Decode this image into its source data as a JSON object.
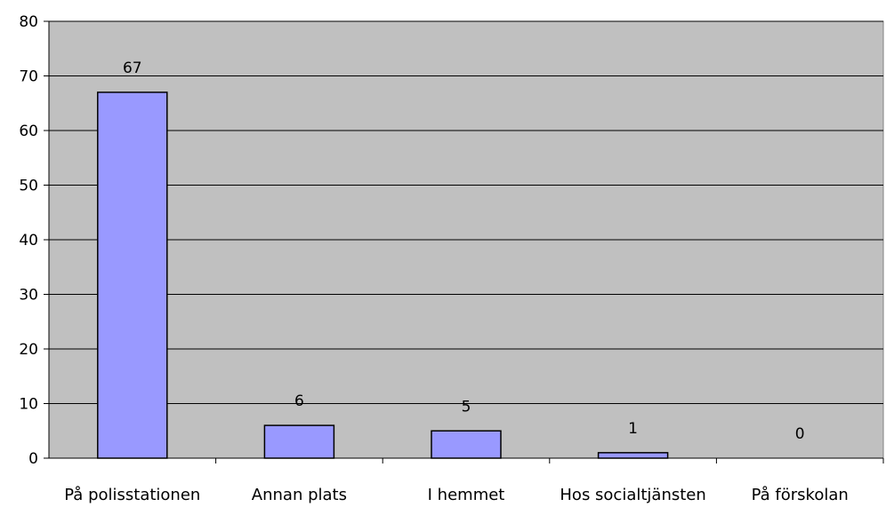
{
  "chart_data": {
    "type": "bar",
    "categories": [
      "På polisstationen",
      "Annan plats",
      "I hemmet",
      "Hos socialtjänsten",
      "På förskolan"
    ],
    "values": [
      67,
      6,
      5,
      1,
      0
    ],
    "data_labels": [
      "67",
      "6",
      "5",
      "1",
      "0"
    ],
    "ylim": [
      0,
      80
    ],
    "yticks": [
      "0",
      "10",
      "20",
      "30",
      "40",
      "50",
      "60",
      "70",
      "80"
    ],
    "grid": true,
    "legend": "none",
    "colors": {
      "bar_fill": "#9999ff",
      "bar_stroke": "#000000",
      "plot_background": "#c0c0c0",
      "gridline": "#000000"
    }
  }
}
